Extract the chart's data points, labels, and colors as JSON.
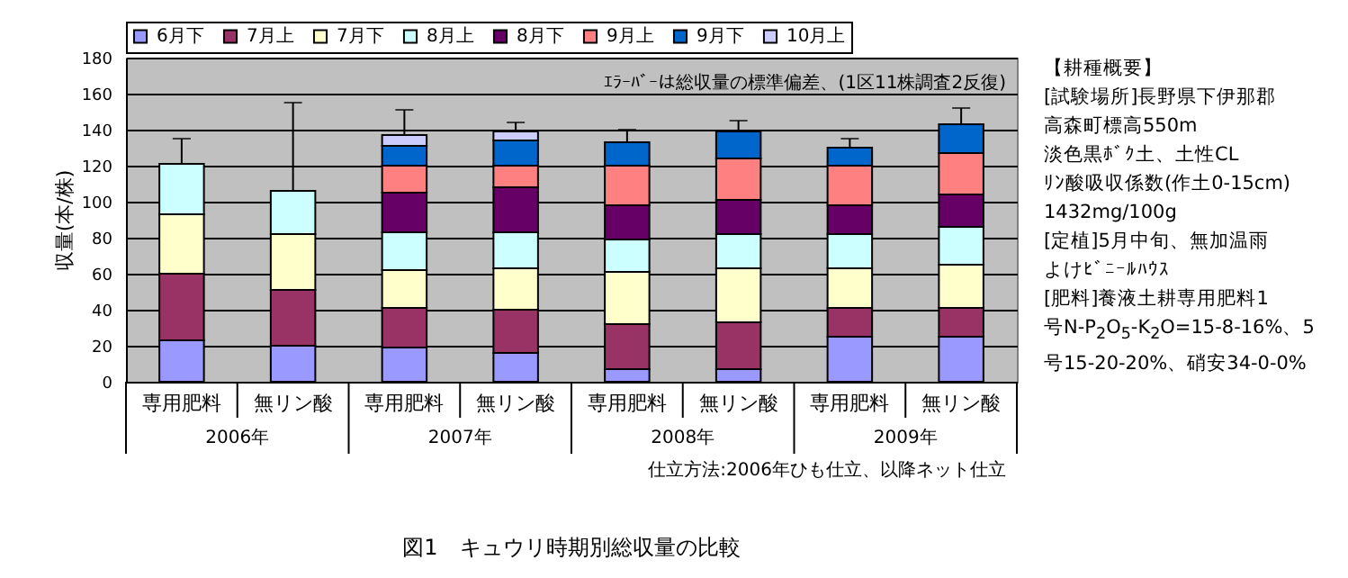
{
  "chart_data": [
    {
      "type": "bar",
      "stacked": true,
      "title": "図1　キュウリ時期別総収量の比較",
      "ylabel": "収量(本/株)",
      "categories": [
        "専用肥料",
        "無リン酸",
        "専用肥料",
        "無リン酸",
        "専用肥料",
        "無リン酸",
        "専用肥料",
        "無リン酸"
      ],
      "ylim": [
        0,
        180
      ],
      "yticks": [
        0,
        20,
        40,
        60,
        80,
        100,
        120,
        140,
        160,
        180
      ],
      "grid": "y",
      "legend": "top",
      "series": [
        {
          "name": "6月下",
          "color": "#9999ff",
          "values": [
            23,
            20,
            19,
            16,
            7,
            7,
            25,
            25
          ]
        },
        {
          "name": "7月上",
          "color": "#993366",
          "values": [
            37,
            31,
            22,
            24,
            25,
            26,
            16,
            16
          ]
        },
        {
          "name": "7月下",
          "color": "#ffffcc",
          "values": [
            33,
            31,
            21,
            23,
            29,
            30,
            22,
            24
          ]
        },
        {
          "name": "8月上",
          "color": "#ccffff",
          "values": [
            28,
            24,
            21,
            20,
            18,
            19,
            19,
            21
          ],
          "errors": [
            14,
            49,
            null,
            null,
            null,
            null,
            null,
            null
          ]
        },
        {
          "name": "8月下",
          "color": "#660066",
          "values": [
            null,
            null,
            22,
            25,
            19,
            19,
            16,
            18
          ]
        },
        {
          "name": "9月上",
          "color": "#ff8080",
          "values": [
            null,
            null,
            15,
            12,
            22,
            23,
            22,
            23
          ]
        },
        {
          "name": "9月下",
          "color": "#0066cc",
          "values": [
            null,
            null,
            11,
            14,
            13,
            15,
            10,
            16
          ],
          "errors": [
            null,
            null,
            null,
            null,
            7,
            6,
            5,
            9
          ]
        },
        {
          "name": "10月上",
          "color": "#ccccff",
          "values": [
            null,
            null,
            6,
            5,
            null,
            null,
            null,
            null
          ],
          "errors": [
            null,
            null,
            14,
            5,
            null,
            null,
            null,
            null
          ]
        }
      ],
      "annotations": [
        "ｴﾗｰﾊﾞｰは総収量の標準偏差、(1区11株調査2反復)",
        "2006年",
        "2007年",
        "2008年",
        "2009年",
        "仕立方法:2006年ひも仕立、以降ネット仕立"
      ]
    },
    {
      "type": "other",
      "annotations": [
        "【耕種概要】",
        "[試験場所]長野県下伊那郡",
        "高森町標高550m",
        "淡色黒ﾎﾞｸ土、土性CL",
        "ﾘﾝ酸吸収係数(作土0-15cm)",
        "1432mg/100g",
        "[定植]5月中旬、無加温雨",
        "よけﾋﾞﾆｰﾙﾊｳｽ",
        "[肥料]養液土耕専用肥料1",
        "号N-P$_{2}$O$_{5}$-K$_{2}$O=15-8-16%、5",
        "号15-20-20%、硝安34-0-0%"
      ]
    }
  ]
}
